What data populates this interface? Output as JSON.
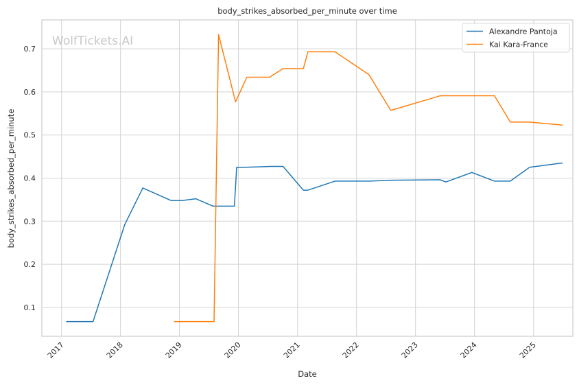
{
  "chart_data": {
    "type": "line",
    "title": "body_strikes_absorbed_per_minute over time",
    "xlabel": "Date",
    "ylabel": "body_strikes_absorbed_per_minute",
    "watermark": "WolfTickets.AI",
    "xlim": [
      "2016-09-01",
      "2025-09-01"
    ],
    "ylim": [
      0.033,
      0.767
    ],
    "x_ticks": [
      "2017",
      "2018",
      "2019",
      "2020",
      "2021",
      "2022",
      "2023",
      "2024",
      "2025"
    ],
    "y_ticks": [
      "0.1",
      "0.2",
      "0.3",
      "0.4",
      "0.5",
      "0.6",
      "0.7"
    ],
    "grid": true,
    "legend_position": "top-right",
    "series": [
      {
        "name": "Alexandre Pantoja",
        "color": "#1f77b4",
        "points": [
          [
            "2017-02-01",
            0.067
          ],
          [
            "2017-07-15",
            0.067
          ],
          [
            "2018-01-27",
            0.292
          ],
          [
            "2018-05-19",
            0.377
          ],
          [
            "2018-11-10",
            0.348
          ],
          [
            "2019-01-20",
            0.348
          ],
          [
            "2019-04-13",
            0.352
          ],
          [
            "2019-07-27",
            0.335
          ],
          [
            "2019-12-07",
            0.335
          ],
          [
            "2019-12-21",
            0.425
          ],
          [
            "2020-02-08",
            0.425
          ],
          [
            "2020-07-18",
            0.427
          ],
          [
            "2020-10-03",
            0.427
          ],
          [
            "2021-02-06",
            0.372
          ],
          [
            "2021-03-06",
            0.372
          ],
          [
            "2021-08-21",
            0.393
          ],
          [
            "2022-03-26",
            0.393
          ],
          [
            "2022-08-01",
            0.395
          ],
          [
            "2023-06-03",
            0.396
          ],
          [
            "2023-07-08",
            0.391
          ],
          [
            "2023-12-16",
            0.413
          ],
          [
            "2024-05-04",
            0.393
          ],
          [
            "2024-08-10",
            0.393
          ],
          [
            "2024-12-07",
            0.425
          ],
          [
            "2025-06-28",
            0.435
          ]
        ]
      },
      {
        "name": "Kai Kara-France",
        "color": "#ff7f0e",
        "points": [
          [
            "2018-12-01",
            0.067
          ],
          [
            "2019-08-03",
            0.067
          ],
          [
            "2019-08-31",
            0.733
          ],
          [
            "2019-12-14",
            0.577
          ],
          [
            "2020-02-22",
            0.634
          ],
          [
            "2020-07-11",
            0.634
          ],
          [
            "2020-10-03",
            0.654
          ],
          [
            "2021-02-06",
            0.654
          ],
          [
            "2021-03-06",
            0.693
          ],
          [
            "2021-08-21",
            0.693
          ],
          [
            "2022-03-19",
            0.64
          ],
          [
            "2022-08-01",
            0.557
          ],
          [
            "2023-06-03",
            0.591
          ],
          [
            "2024-05-04",
            0.591
          ],
          [
            "2024-08-10",
            0.53
          ],
          [
            "2024-12-07",
            0.53
          ],
          [
            "2025-06-28",
            0.523
          ]
        ]
      }
    ]
  }
}
